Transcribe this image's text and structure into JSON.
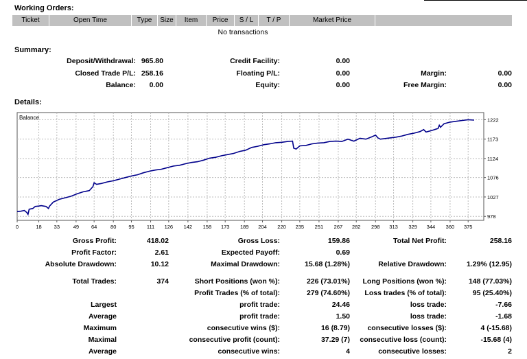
{
  "working_orders": {
    "title": "Working Orders:",
    "columns": [
      "Ticket",
      "Open Time",
      "Type",
      "Size",
      "Item",
      "Price",
      "S / L",
      "T / P",
      "Market Price"
    ],
    "empty_text": "No transactions"
  },
  "summary": {
    "title": "Summary:",
    "deposit_withdrawal": {
      "label": "Deposit/Withdrawal:",
      "value": "965.80"
    },
    "closed_trade_pl": {
      "label": "Closed Trade P/L:",
      "value": "258.16"
    },
    "balance": {
      "label": "Balance:",
      "value": "0.00"
    },
    "credit_facility": {
      "label": "Credit Facility:",
      "value": "0.00"
    },
    "floating_pl": {
      "label": "Floating P/L:",
      "value": "0.00"
    },
    "equity": {
      "label": "Equity:",
      "value": "0.00"
    },
    "margin": {
      "label": "Margin:",
      "value": "0.00"
    },
    "free_margin": {
      "label": "Free Margin:",
      "value": "0.00"
    }
  },
  "details": {
    "title": "Details:",
    "gross_profit": {
      "label": "Gross Profit:",
      "value": "418.02"
    },
    "gross_loss": {
      "label": "Gross Loss:",
      "value": "159.86"
    },
    "total_net_profit": {
      "label": "Total Net Profit:",
      "value": "258.16"
    },
    "profit_factor": {
      "label": "Profit Factor:",
      "value": "2.61"
    },
    "expected_payoff": {
      "label": "Expected Payoff:",
      "value": "0.69"
    },
    "absolute_drawdown": {
      "label": "Absolute Drawdown:",
      "value": "10.12"
    },
    "maximal_drawdown": {
      "label": "Maximal Drawdown:",
      "value": "15.68 (1.28%)"
    },
    "relative_drawdown": {
      "label": "Relative Drawdown:",
      "value": "1.29% (12.95)"
    },
    "total_trades": {
      "label": "Total Trades:",
      "value": "374"
    },
    "short_positions": {
      "label": "Short Positions (won %):",
      "value": "226 (73.01%)"
    },
    "long_positions": {
      "label": "Long Positions (won %):",
      "value": "148 (77.03%)"
    },
    "profit_trades": {
      "label": "Profit Trades (% of total):",
      "value": "279 (74.60%)"
    },
    "loss_trades": {
      "label": "Loss trades (% of total):",
      "value": "95 (25.40%)"
    },
    "largest": {
      "label": "Largest",
      "profit_label": "profit trade:",
      "profit_value": "24.46",
      "loss_label": "loss trade:",
      "loss_value": "-7.66"
    },
    "average": {
      "label": "Average",
      "profit_label": "profit trade:",
      "profit_value": "1.50",
      "loss_label": "loss trade:",
      "loss_value": "-1.68"
    },
    "maximum": {
      "label": "Maximum",
      "profit_label": "consecutive wins ($):",
      "profit_value": "16 (8.79)",
      "loss_label": "consecutive losses ($):",
      "loss_value": "4 (-15.68)"
    },
    "maximal": {
      "label": "Maximal",
      "profit_label": "consecutive profit (count):",
      "profit_value": "37.29 (7)",
      "loss_label": "consecutive loss (count):",
      "loss_value": "-15.68 (4)"
    },
    "average_consec": {
      "label": "Average",
      "profit_label": "consecutive wins:",
      "profit_value": "4",
      "loss_label": "consecutive losses:",
      "loss_value": "2"
    }
  },
  "chart_data": {
    "type": "line",
    "legend": "Balance",
    "x_ticks": [
      0,
      18,
      33,
      49,
      64,
      80,
      95,
      111,
      126,
      142,
      158,
      173,
      189,
      204,
      220,
      235,
      251,
      267,
      282,
      298,
      313,
      329,
      344,
      360,
      375
    ],
    "y_ticks": [
      978,
      1027,
      1076,
      1124,
      1173,
      1222
    ],
    "xlim": [
      0,
      388
    ],
    "ylim": [
      968,
      1240
    ],
    "grid": true,
    "line_color": "#00008b",
    "series": [
      {
        "x": [
          0,
          3,
          6,
          8,
          9,
          10,
          13,
          15,
          18,
          20,
          24,
          26,
          27,
          30,
          35,
          40,
          45,
          50,
          55,
          60,
          63,
          64,
          66,
          70,
          75,
          80,
          85,
          90,
          95,
          100,
          105,
          110,
          115,
          120,
          125,
          130,
          135,
          140,
          145,
          150,
          155,
          160,
          165,
          170,
          175,
          180,
          185,
          190,
          195,
          200,
          205,
          210,
          215,
          220,
          225,
          229,
          230,
          232,
          235,
          240,
          245,
          250,
          255,
          260,
          265,
          270,
          275,
          280,
          285,
          290,
          295,
          298,
          300,
          302,
          305,
          310,
          315,
          320,
          325,
          330,
          335,
          338,
          340,
          345,
          350,
          351,
          352,
          355,
          360,
          365,
          370,
          375,
          380
        ],
        "y": [
          990,
          991,
          993,
          988,
          983,
          996,
          998,
          1003,
          1004,
          1005,
          1003,
          998,
          1004,
          1014,
          1021,
          1025,
          1029,
          1035,
          1040,
          1043,
          1053,
          1063,
          1059,
          1061,
          1065,
          1068,
          1072,
          1076,
          1080,
          1083,
          1088,
          1092,
          1095,
          1097,
          1101,
          1105,
          1107,
          1111,
          1114,
          1116,
          1120,
          1125,
          1127,
          1131,
          1134,
          1137,
          1142,
          1145,
          1152,
          1155,
          1159,
          1161,
          1164,
          1165,
          1167,
          1168,
          1150,
          1148,
          1156,
          1157,
          1161,
          1163,
          1164,
          1167,
          1168,
          1167,
          1173,
          1168,
          1175,
          1173,
          1179,
          1183,
          1176,
          1173,
          1174,
          1176,
          1178,
          1181,
          1185,
          1188,
          1192,
          1197,
          1191,
          1195,
          1200,
          1208,
          1203,
          1212,
          1216,
          1218,
          1220,
          1222,
          1221
        ]
      }
    ]
  }
}
